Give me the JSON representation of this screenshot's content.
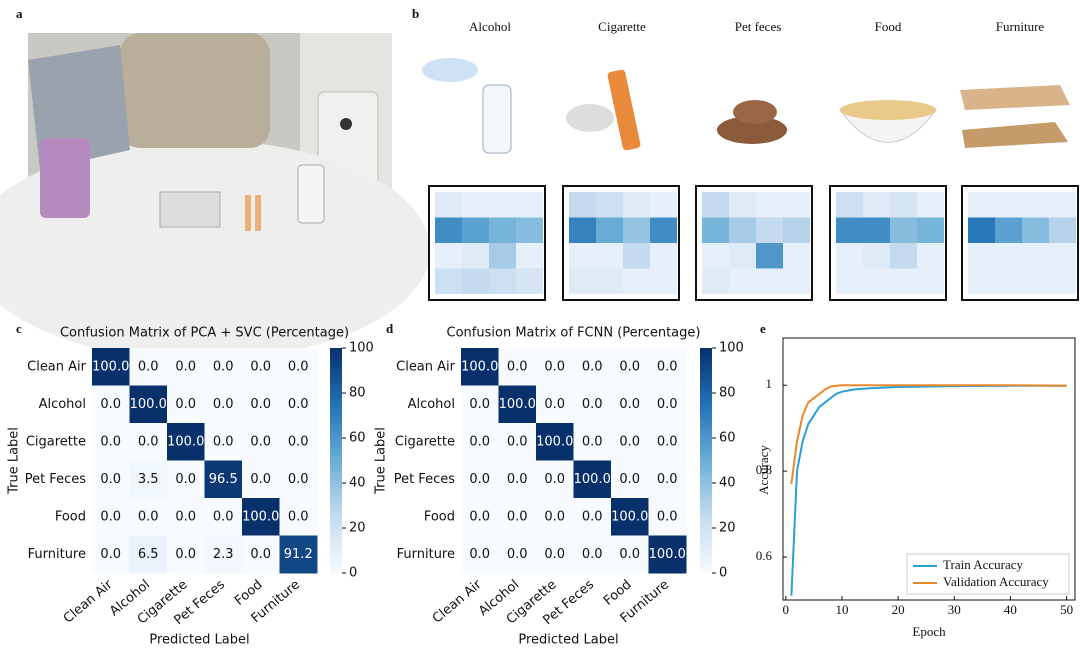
{
  "panel_labels": [
    "a",
    "b",
    "c",
    "d",
    "e"
  ],
  "panel_b": {
    "odors": [
      "Alcohol",
      "Cigarette",
      "Pet feces",
      "Food",
      "Furniture"
    ],
    "maps": [
      [
        [
          0.15,
          0.1,
          0.1,
          0.1
        ],
        [
          0.75,
          0.65,
          0.55,
          0.5
        ],
        [
          0.1,
          0.15,
          0.4,
          0.1
        ],
        [
          0.25,
          0.3,
          0.25,
          0.2
        ]
      ],
      [
        [
          0.3,
          0.25,
          0.15,
          0.1
        ],
        [
          0.8,
          0.6,
          0.45,
          0.75
        ],
        [
          0.1,
          0.1,
          0.3,
          0.1
        ],
        [
          0.15,
          0.15,
          0.1,
          0.1
        ]
      ],
      [
        [
          0.3,
          0.15,
          0.1,
          0.1
        ],
        [
          0.55,
          0.4,
          0.3,
          0.35
        ],
        [
          0.1,
          0.15,
          0.7,
          0.1
        ],
        [
          0.15,
          0.1,
          0.1,
          0.1
        ]
      ],
      [
        [
          0.25,
          0.15,
          0.2,
          0.1
        ],
        [
          0.75,
          0.75,
          0.5,
          0.55
        ],
        [
          0.1,
          0.15,
          0.3,
          0.1
        ],
        [
          0.1,
          0.1,
          0.1,
          0.1
        ]
      ],
      [
        [
          0.1,
          0.1,
          0.1,
          0.1
        ],
        [
          0.85,
          0.65,
          0.5,
          0.35
        ],
        [
          0.1,
          0.1,
          0.1,
          0.1
        ],
        [
          0.1,
          0.1,
          0.1,
          0.1
        ]
      ]
    ]
  },
  "chart_data": [
    {
      "type": "heatmap",
      "title": "Confusion Matrix of PCA + SVC (Percentage)",
      "x_label": "Predicted Label",
      "y_label": "True Label",
      "categories": [
        "Clean Air",
        "Alcohol",
        "Cigarette",
        "Pet Feces",
        "Food",
        "Furniture"
      ],
      "y_categories": [
        "Clean Air",
        "Alcohol",
        "Cigarette",
        "Pet Feces",
        "Food",
        "Furniture"
      ],
      "values": [
        [
          100,
          0,
          0,
          0,
          0,
          0
        ],
        [
          0,
          100,
          0,
          0,
          0,
          0
        ],
        [
          0,
          0,
          100,
          0,
          0,
          0
        ],
        [
          0,
          3.5,
          0,
          96.5,
          0,
          0
        ],
        [
          0,
          0,
          0,
          0,
          100,
          0
        ],
        [
          0,
          6.5,
          0,
          2.3,
          0,
          91.2
        ]
      ],
      "value_labels": [
        [
          "100.0",
          "0.0",
          "0.0",
          "0.0",
          "0.0",
          "0.0"
        ],
        [
          "0.0",
          "100.0",
          "0.0",
          "0.0",
          "0.0",
          "0.0"
        ],
        [
          "0.0",
          "0.0",
          "100.0",
          "0.0",
          "0.0",
          "0.0"
        ],
        [
          "0.0",
          "3.5",
          "0.0",
          "96.5",
          "0.0",
          "0.0"
        ],
        [
          "0.0",
          "0.0",
          "0.0",
          "0.0",
          "100.0",
          "0.0"
        ],
        [
          "0.0",
          "6.5",
          "0.0",
          "2.3",
          "0.0",
          "91.2"
        ]
      ],
      "clim": [
        0,
        100
      ],
      "colorbar_ticks": [
        0,
        20,
        40,
        60,
        80,
        100
      ]
    },
    {
      "type": "heatmap",
      "title": "Confusion Matrix of FCNN (Percentage)",
      "x_label": "Predicted Label",
      "y_label": "True Label",
      "categories": [
        "Clean Air",
        "Alcohol",
        "Cigarette",
        "Pet Feces",
        "Food",
        "Furniture"
      ],
      "y_categories": [
        "Clean Air",
        "Alcohol",
        "Cigarette",
        "Pet Feces",
        "Food",
        "Furniture"
      ],
      "values": [
        [
          100,
          0,
          0,
          0,
          0,
          0
        ],
        [
          0,
          100,
          0,
          0,
          0,
          0
        ],
        [
          0,
          0,
          100,
          0,
          0,
          0
        ],
        [
          0,
          0,
          0,
          100,
          0,
          0
        ],
        [
          0,
          0,
          0,
          0,
          100,
          0
        ],
        [
          0,
          0,
          0,
          0,
          0,
          100
        ]
      ],
      "value_labels": [
        [
          "100.0",
          "0.0",
          "0.0",
          "0.0",
          "0.0",
          "0.0"
        ],
        [
          "0.0",
          "100.0",
          "0.0",
          "0.0",
          "0.0",
          "0.0"
        ],
        [
          "0.0",
          "0.0",
          "100.0",
          "0.0",
          "0.0",
          "0.0"
        ],
        [
          "0.0",
          "0.0",
          "0.0",
          "100.0",
          "0.0",
          "0.0"
        ],
        [
          "0.0",
          "0.0",
          "0.0",
          "0.0",
          "100.0",
          "0.0"
        ],
        [
          "0.0",
          "0.0",
          "0.0",
          "0.0",
          "0.0",
          "100.0"
        ]
      ],
      "clim": [
        0,
        100
      ],
      "colorbar_ticks": [
        0,
        20,
        40,
        60,
        80,
        100
      ]
    },
    {
      "type": "line",
      "x_label": "Epoch",
      "y_label": "Accuracy",
      "x": [
        1,
        2,
        3,
        4,
        5,
        6,
        7,
        8,
        9,
        10,
        12,
        15,
        20,
        30,
        40,
        50
      ],
      "series": [
        {
          "name": "Train Accuracy",
          "color": "#2b9fd8",
          "values": [
            0.51,
            0.8,
            0.87,
            0.91,
            0.93,
            0.95,
            0.96,
            0.97,
            0.98,
            0.985,
            0.99,
            0.993,
            0.996,
            0.998,
            0.999,
            0.999
          ]
        },
        {
          "name": "Validation Accuracy",
          "color": "#e8892b",
          "values": [
            0.77,
            0.87,
            0.93,
            0.96,
            0.97,
            0.98,
            0.99,
            0.997,
            0.999,
            1,
            1,
            1,
            1,
            1,
            1,
            0.999
          ]
        }
      ],
      "xlim": [
        -0.5,
        51.5
      ],
      "ylim": [
        0.5,
        1.11
      ],
      "xticks": [
        0,
        10,
        20,
        30,
        40,
        50
      ],
      "yticks": [
        0.6,
        0.8,
        1
      ],
      "legend": "lower right"
    }
  ]
}
